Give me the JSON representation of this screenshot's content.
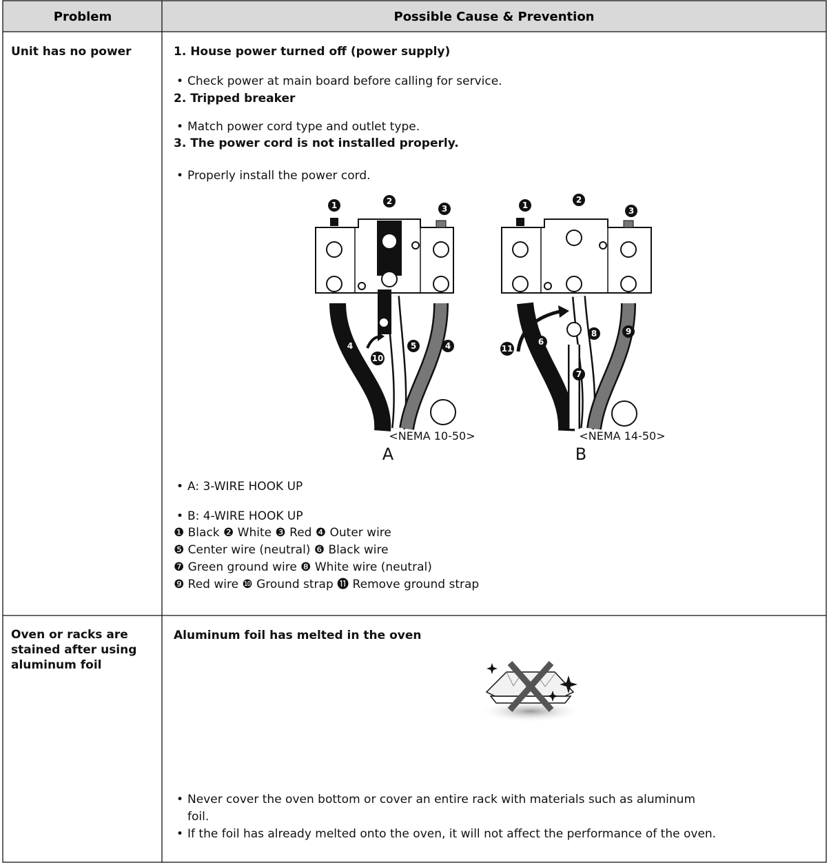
{
  "table": {
    "header": {
      "problem": "Problem",
      "cause": "Possible Cause & Prevention"
    },
    "rows": [
      {
        "problem": "Unit has no power",
        "items": [
          {
            "heading": "1. House power turned off (power supply)",
            "bullet": "Check power at main board before calling for service."
          },
          {
            "heading": "2. Tripped breaker",
            "bullet": "Match power cord type and outlet type."
          },
          {
            "heading": "3. The power cord is not installed properly.",
            "bullet": "Properly install the power cord."
          }
        ],
        "diagram": {
          "a": {
            "labels": [
              "1",
              "2",
              "3",
              "4",
              "10",
              "5",
              "4"
            ],
            "outlet": "<NEMA 10-50>",
            "letter": "A"
          },
          "b": {
            "labels": [
              "1",
              "2",
              "3",
              "6",
              "11",
              "8",
              "9",
              "7"
            ],
            "outlet": "<NEMA 14-50>",
            "letter": "B"
          }
        },
        "bullets": [
          "A: 3-WIRE HOOK UP",
          "B: 4-WIRE HOOK UP"
        ],
        "legend": [
          "❶ Black ❷ White ❸ Red ❹ Outer wire",
          "❺ Center wire (neutral) ❻ Black wire",
          "❼ Green ground wire ❽ White wire (neutral)",
          "❾ Red wire ❿ Ground strap ⓫ Remove ground strap"
        ]
      },
      {
        "problem": "Oven or racks are stained after using aluminum foil",
        "heading": "Aluminum foil has melted in the oven",
        "bullets": [
          "Never cover the oven bottom or cover an entire rack with materials such as aluminum foil.",
          "If the foil has already melted onto the oven, it will not affect the performance of the oven."
        ]
      }
    ]
  }
}
